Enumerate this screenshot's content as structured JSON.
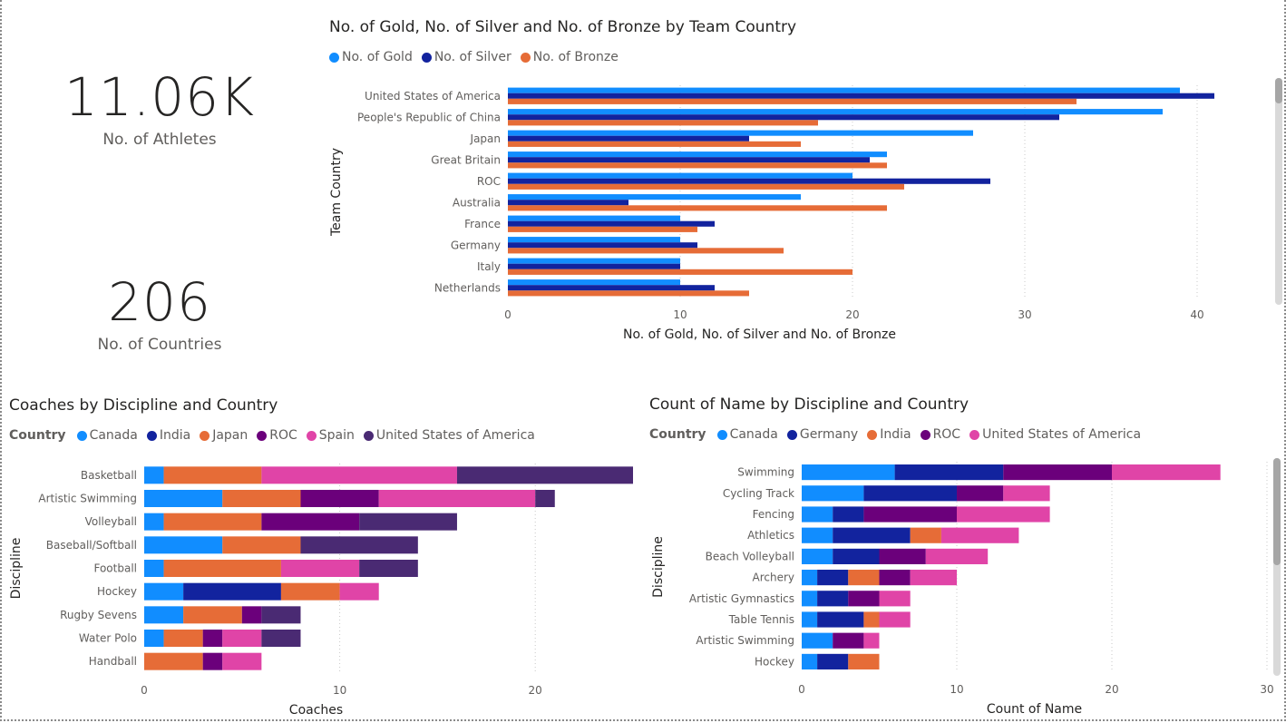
{
  "cards": [
    {
      "value": "11.06K",
      "label": "No. of Athletes"
    },
    {
      "value": "206",
      "label": "No. of Countries"
    }
  ],
  "colors": {
    "gold": "#118DFF",
    "silver": "#12239E",
    "bronze": "#E66C37",
    "canada": "#118DFF",
    "india": "#12239E",
    "germany": "#12239E",
    "japan": "#E66C37",
    "roc": "#6B007B",
    "spain": "#E044A7",
    "usa": "#4A2A73",
    "usa2": "#E044A7"
  },
  "chart_data": [
    {
      "id": "medals",
      "type": "bar",
      "orientation": "horizontal",
      "title": "No. of Gold, No. of Silver and No. of Bronze by Team Country",
      "xlabel": "No. of Gold, No. of Silver and No. of Bronze",
      "ylabel": "Team Country",
      "xlim": [
        0,
        45
      ],
      "xticks": [
        0,
        10,
        20,
        30,
        40
      ],
      "categories": [
        "United States of America",
        "People's Republic of China",
        "Japan",
        "Great Britain",
        "ROC",
        "Australia",
        "France",
        "Germany",
        "Italy",
        "Netherlands"
      ],
      "series": [
        {
          "name": "No. of Gold",
          "color": "#118DFF",
          "values": [
            39,
            38,
            27,
            22,
            20,
            17,
            10,
            10,
            10,
            10
          ]
        },
        {
          "name": "No. of Silver",
          "color": "#12239E",
          "values": [
            41,
            32,
            14,
            21,
            28,
            7,
            12,
            11,
            10,
            12
          ]
        },
        {
          "name": "No. of Bronze",
          "color": "#E66C37",
          "values": [
            33,
            18,
            17,
            22,
            23,
            22,
            11,
            16,
            20,
            14
          ]
        }
      ]
    },
    {
      "id": "coaches",
      "type": "bar",
      "orientation": "horizontal",
      "stacked": true,
      "title": "Coaches by Discipline and Country",
      "legend_title": "Country",
      "xlabel": "Coaches",
      "ylabel": "Discipline",
      "xlim": [
        0,
        25
      ],
      "xticks": [
        0,
        10,
        20
      ],
      "categories": [
        "Basketball",
        "Artistic Swimming",
        "Volleyball",
        "Baseball/Softball",
        "Football",
        "Hockey",
        "Rugby Sevens",
        "Water Polo",
        "Handball"
      ],
      "series": [
        {
          "name": "Canada",
          "color": "#118DFF",
          "values": [
            1,
            4,
            1,
            4,
            1,
            2,
            2,
            1,
            0
          ]
        },
        {
          "name": "India",
          "color": "#12239E",
          "values": [
            0,
            0,
            0,
            0,
            0,
            5,
            0,
            0,
            0
          ]
        },
        {
          "name": "Japan",
          "color": "#E66C37",
          "values": [
            5,
            4,
            5,
            4,
            6,
            3,
            3,
            2,
            3
          ]
        },
        {
          "name": "ROC",
          "color": "#6B007B",
          "values": [
            0,
            4,
            5,
            0,
            0,
            0,
            1,
            1,
            1
          ]
        },
        {
          "name": "Spain",
          "color": "#E044A7",
          "values": [
            10,
            8,
            0,
            0,
            4,
            2,
            0,
            2,
            2
          ]
        },
        {
          "name": "United States of America",
          "color": "#4A2A73",
          "values": [
            9,
            1,
            5,
            6,
            3,
            0,
            2,
            2,
            0
          ]
        }
      ]
    },
    {
      "id": "names",
      "type": "bar",
      "orientation": "horizontal",
      "stacked": true,
      "title": "Count of Name by Discipline and Country",
      "legend_title": "Country",
      "xlabel": "Count of Name",
      "ylabel": "Discipline",
      "xlim": [
        0,
        30
      ],
      "xticks": [
        0,
        10,
        20,
        30
      ],
      "categories": [
        "Swimming",
        "Cycling Track",
        "Fencing",
        "Athletics",
        "Beach Volleyball",
        "Archery",
        "Artistic Gymnastics",
        "Table Tennis",
        "Artistic Swimming",
        "Hockey"
      ],
      "series": [
        {
          "name": "Canada",
          "color": "#118DFF",
          "values": [
            6,
            4,
            2,
            2,
            2,
            1,
            1,
            1,
            2,
            1
          ]
        },
        {
          "name": "Germany",
          "color": "#12239E",
          "values": [
            7,
            6,
            2,
            5,
            3,
            2,
            2,
            3,
            0,
            2
          ]
        },
        {
          "name": "India",
          "color": "#E66C37",
          "values": [
            0,
            0,
            0,
            2,
            0,
            2,
            0,
            1,
            0,
            2
          ]
        },
        {
          "name": "ROC",
          "color": "#6B007B",
          "values": [
            7,
            3,
            6,
            0,
            3,
            2,
            2,
            0,
            2,
            0
          ]
        },
        {
          "name": "United States of America",
          "color": "#E044A7",
          "values": [
            7,
            3,
            6,
            5,
            4,
            3,
            2,
            2,
            1,
            0
          ]
        }
      ]
    }
  ]
}
